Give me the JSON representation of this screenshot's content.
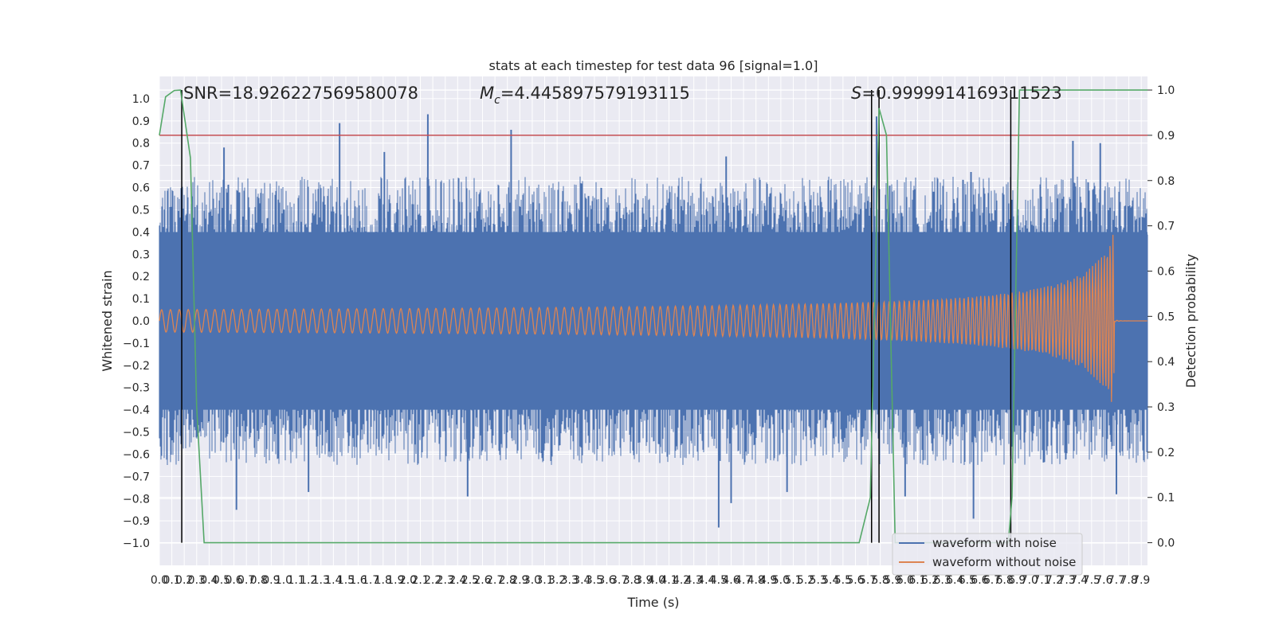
{
  "chart_data": {
    "type": "line",
    "title": "stats at each timestep for test data 96 [signal=1.0]",
    "xlabel": "Time (s)",
    "ylabel": "Whitened strain",
    "y2label": "Detection probability",
    "xlim": [
      0.0,
      7.95
    ],
    "ylim": [
      -1.1,
      1.1
    ],
    "y2lim": [
      -0.05,
      1.03
    ],
    "x_ticks": [
      0.0,
      0.1,
      0.2,
      0.3,
      0.4,
      0.5,
      0.6,
      0.7,
      0.8,
      0.9,
      1.0,
      1.1,
      1.2,
      1.3,
      1.4,
      1.5,
      1.6,
      1.7,
      1.8,
      1.9,
      2.0,
      2.1,
      2.2,
      2.3,
      2.4,
      2.5,
      2.6,
      2.7,
      2.8,
      2.9,
      3.0,
      3.1,
      3.2,
      3.3,
      3.4,
      3.5,
      3.6,
      3.7,
      3.8,
      3.9,
      4.0,
      4.1,
      4.2,
      4.3,
      4.4,
      4.5,
      4.6,
      4.7,
      4.8,
      4.9,
      5.0,
      5.1,
      5.2,
      5.3,
      5.4,
      5.5,
      5.6,
      5.7,
      5.8,
      5.9,
      6.0,
      6.1,
      6.2,
      6.3,
      6.4,
      6.5,
      6.6,
      6.7,
      6.8,
      6.9,
      7.0,
      7.1,
      7.2,
      7.3,
      7.4,
      7.5,
      7.6,
      7.7,
      7.8,
      7.9
    ],
    "y_ticks": [
      -1.0,
      -0.9,
      -0.8,
      -0.7,
      -0.6,
      -0.5,
      -0.4,
      -0.3,
      -0.2,
      -0.1,
      0.0,
      0.1,
      0.2,
      0.3,
      0.4,
      0.5,
      0.6,
      0.7,
      0.8,
      0.9,
      1.0
    ],
    "y2_ticks": [
      0.0,
      0.1,
      0.2,
      0.3,
      0.4,
      0.5,
      0.6,
      0.7,
      0.8,
      0.9,
      1.0
    ],
    "annotations": {
      "snr": "SNR=18.926227569580078",
      "mc_value": "=4.445897579193115",
      "s_value": "=0.9999914169311523"
    },
    "threshold_y2": 0.9,
    "event_lines_x": [
      0.18,
      5.73,
      5.79,
      6.85
    ],
    "series": [
      {
        "name": "waveform with noise",
        "color": "#4c72b0",
        "axis": "left",
        "envelope_upper": 0.4,
        "envelope_lower": -0.4,
        "peaks": [
          {
            "x": 1.45,
            "y": 0.89
          },
          {
            "x": 2.16,
            "y": 0.93
          },
          {
            "x": 1.81,
            "y": 0.76
          },
          {
            "x": 0.52,
            "y": 0.78
          },
          {
            "x": 2.83,
            "y": 0.86
          },
          {
            "x": 4.56,
            "y": 0.74
          },
          {
            "x": 5.77,
            "y": 0.92
          },
          {
            "x": 7.35,
            "y": 0.81
          },
          {
            "x": 7.57,
            "y": 0.8
          },
          {
            "x": 6.53,
            "y": 0.67
          },
          {
            "x": 0.62,
            "y": -0.85
          },
          {
            "x": 2.48,
            "y": -0.79
          },
          {
            "x": 4.5,
            "y": -0.93
          },
          {
            "x": 4.6,
            "y": -0.82
          },
          {
            "x": 6.55,
            "y": -0.89
          },
          {
            "x": 7.7,
            "y": -0.78
          },
          {
            "x": 5.05,
            "y": -0.77
          },
          {
            "x": 6.0,
            "y": -0.79
          },
          {
            "x": 1.2,
            "y": -0.77
          }
        ]
      },
      {
        "name": "waveform without noise",
        "color": "#dd8452",
        "axis": "left",
        "amplitude_start": 0.03,
        "amplitude_peak": 0.4,
        "merger_time": 7.68
      },
      {
        "name": "",
        "color": "#55a868",
        "axis": "right",
        "x": [
          0.0,
          0.05,
          0.12,
          0.17,
          0.25,
          0.3,
          0.36,
          5.63,
          5.72,
          5.79,
          5.85,
          5.92,
          6.83,
          6.86,
          6.92,
          7.95
        ],
        "y": [
          0.9,
          0.985,
          0.999,
          1.0,
          0.85,
          0.3,
          0.0,
          0.0,
          0.1,
          0.96,
          0.9,
          0.0,
          0.0,
          0.1,
          1.0,
          1.0
        ]
      }
    ],
    "legend_position": "lower right",
    "grid": true
  }
}
